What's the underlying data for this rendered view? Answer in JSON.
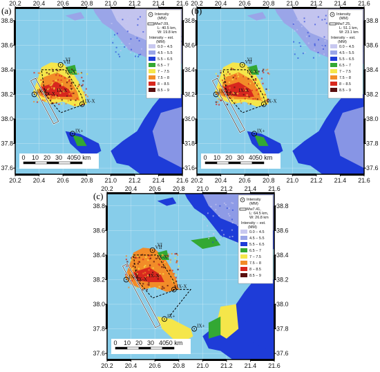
{
  "colors": {
    "sea": "#87cdea",
    "frame": "#000000",
    "int_0_45": "#c8c8f0",
    "int_45_55": "#9aa5e8",
    "int_55_65": "#1e3cd8",
    "int_65_7": "#33a833",
    "int_7_75": "#f5e64a",
    "int_75_8": "#f28c28",
    "int_8_85": "#d8281e",
    "int_85_9": "#5a0f0f"
  },
  "panels": [
    {
      "label": "(a)",
      "legend": {
        "symbol_label": "Intensity (MM)",
        "rupture_label": "Mw7.09, L: 40.5 km W: 19.8 km",
        "est_title": "Intensity − est. (MM)",
        "classes": [
          "0.0 − 4.5",
          "4.5 − 5.5",
          "5.5 − 6.5",
          "6.5 − 7",
          "7 − 7.5",
          "7.5 − 8",
          "8 − 8.5",
          "8.5 − 9"
        ]
      }
    },
    {
      "label": "(b)",
      "legend": {
        "symbol_label": "Intensity (MM)",
        "rupture_label": "Mw7.25, L: 51.1 km W: 23.1 km",
        "est_title": "Intensity − est. (MM)",
        "classes": [
          "0.0 − 4.5",
          "4.5 − 5.5",
          "5.5 − 6.5",
          "6.5 − 7",
          "7 − 7.5",
          "7.5 − 8",
          "8 − 8.5",
          "8.5 − 9"
        ]
      }
    },
    {
      "label": "(c)",
      "legend": {
        "symbol_label": "Intensity (MM)",
        "rupture_label": "Mw7.41, L: 64.5 km W: 26.8 km",
        "est_title": "Intensity − est. (MM)",
        "classes": [
          "0.0 − 4.5",
          "4.5 − 5.5",
          "5.5 − 6.5",
          "6.5 − 7",
          "7 − 7.5",
          "7.5 − 8",
          "8 − 8.5",
          "8.5 − 9"
        ]
      }
    }
  ],
  "axes": {
    "x_ticks": [
      "20.2",
      "20.4",
      "20.6",
      "20.8",
      "21.0",
      "21.2",
      "21.4",
      "21.6"
    ],
    "y_ticks": [
      "38.8",
      "38.6",
      "38.4",
      "38.2",
      "38.0",
      "37.8",
      "37.6"
    ]
  },
  "scalebar": {
    "ticks": [
      "0",
      "10",
      "20",
      "30",
      "40",
      "50 km"
    ]
  },
  "site_labels": {
    "vi": "VI",
    "vii": "VII",
    "ixx": "IX-X",
    "ix": "IX",
    "ixplus": "IX+"
  }
}
